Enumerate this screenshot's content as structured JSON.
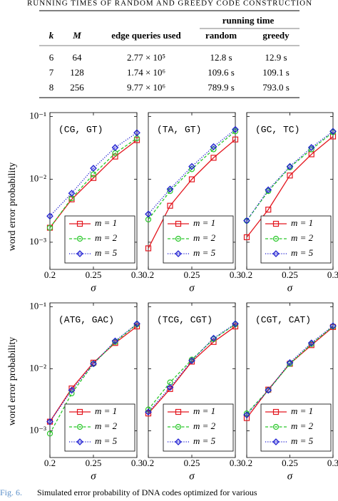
{
  "table": {
    "caption": "RUNNING TIMES OF RANDOM AND GREEDY CODE CONSTRUCTION",
    "group_header": "running time",
    "headers": [
      "k",
      "M",
      "edge queries used",
      "random",
      "greedy"
    ],
    "rows": [
      [
        "6",
        "64",
        "2.77 × 10⁵",
        "12.8 s",
        "12.9 s"
      ],
      [
        "7",
        "128",
        "1.74 × 10⁶",
        "109.6 s",
        "109.1 s"
      ],
      [
        "8",
        "256",
        "9.77 × 10⁶",
        "789.9 s",
        "793.0 s"
      ]
    ]
  },
  "chart_data": [
    {
      "type": "line",
      "annotation": "(CG, GT)",
      "ylabel": "word error probability",
      "xlabel": "σ",
      "log_y": true,
      "show_ytick_labels": true,
      "legend": "lower right",
      "x": [
        0.2,
        0.225,
        0.25,
        0.275,
        0.3
      ],
      "xlim": [
        0.2,
        0.3
      ],
      "xticks": [
        0.2,
        0.25,
        0.3
      ],
      "ylim": [
        0.00037,
        0.115
      ],
      "yticks": [
        {
          "value": 0.001,
          "label": "10⁻³"
        },
        {
          "value": 0.01,
          "label": "10⁻²"
        },
        {
          "value": 0.1,
          "label": "10⁻¹"
        }
      ],
      "series": [
        {
          "name": "m = 1",
          "color": "#e3161e",
          "values": [
            0.0017,
            0.0048,
            0.0105,
            0.023,
            0.042
          ]
        },
        {
          "name": "m = 2",
          "color": "#2bc82b",
          "values": [
            0.0017,
            0.005,
            0.012,
            0.026,
            0.045
          ]
        },
        {
          "name": "m = 5",
          "color": "#1a1ad0",
          "values": [
            0.0026,
            0.006,
            0.015,
            0.032,
            0.055
          ]
        }
      ]
    },
    {
      "type": "line",
      "annotation": "(TA, GT)",
      "xlabel": "σ",
      "log_y": true,
      "show_ytick_labels": false,
      "legend": "lower right",
      "x": [
        0.2,
        0.225,
        0.25,
        0.275,
        0.3
      ],
      "xlim": [
        0.2,
        0.3
      ],
      "xticks": [
        0.2,
        0.25,
        0.3
      ],
      "ylim": [
        0.00037,
        0.115
      ],
      "yticks": [
        {
          "value": 0.001,
          "label": "10⁻³"
        },
        {
          "value": 0.01,
          "label": "10⁻²"
        },
        {
          "value": 0.1,
          "label": "10⁻¹"
        }
      ],
      "series": [
        {
          "name": "m = 1",
          "color": "#e3161e",
          "values": [
            0.0008,
            0.0038,
            0.01,
            0.022,
            0.043
          ]
        },
        {
          "name": "m = 2",
          "color": "#2bc82b",
          "values": [
            0.0023,
            0.0065,
            0.0145,
            0.03,
            0.058
          ]
        },
        {
          "name": "m = 5",
          "color": "#1a1ad0",
          "values": [
            0.0028,
            0.007,
            0.016,
            0.033,
            0.062
          ]
        }
      ]
    },
    {
      "type": "line",
      "annotation": "(GC, TC)",
      "xlabel": "σ",
      "log_y": true,
      "show_ytick_labels": false,
      "legend": "lower right",
      "x": [
        0.2,
        0.225,
        0.25,
        0.275,
        0.3
      ],
      "xlim": [
        0.2,
        0.3
      ],
      "xticks": [
        0.2,
        0.25,
        0.3
      ],
      "ylim": [
        0.00037,
        0.115
      ],
      "yticks": [
        {
          "value": 0.001,
          "label": "10⁻³"
        },
        {
          "value": 0.01,
          "label": "10⁻²"
        },
        {
          "value": 0.1,
          "label": "10⁻¹"
        }
      ],
      "series": [
        {
          "name": "m = 1",
          "color": "#e3161e",
          "values": [
            0.0012,
            0.0033,
            0.0115,
            0.025,
            0.048
          ]
        },
        {
          "name": "m = 2",
          "color": "#2bc82b",
          "values": [
            0.0022,
            0.0065,
            0.0155,
            0.03,
            0.056
          ]
        },
        {
          "name": "m = 5",
          "color": "#1a1ad0",
          "values": [
            0.0022,
            0.0068,
            0.016,
            0.032,
            0.058
          ]
        }
      ]
    },
    {
      "type": "line",
      "annotation": "(ATG, GAC)",
      "ylabel": "word error probability",
      "xlabel": "σ",
      "log_y": true,
      "show_ytick_labels": true,
      "legend": "lower right",
      "x": [
        0.2,
        0.225,
        0.25,
        0.275,
        0.3
      ],
      "xlim": [
        0.2,
        0.3
      ],
      "xticks": [
        0.2,
        0.25,
        0.3
      ],
      "ylim": [
        0.00037,
        0.115
      ],
      "yticks": [
        {
          "value": 0.001,
          "label": "10⁻³"
        },
        {
          "value": 0.01,
          "label": "10⁻²"
        },
        {
          "value": 0.1,
          "label": "10⁻¹"
        }
      ],
      "series": [
        {
          "name": "m = 1",
          "color": "#e3161e",
          "values": [
            0.0014,
            0.0048,
            0.0125,
            0.026,
            0.048
          ]
        },
        {
          "name": "m = 2",
          "color": "#2bc82b",
          "values": [
            0.0009,
            0.004,
            0.012,
            0.027,
            0.052
          ]
        },
        {
          "name": "m = 5",
          "color": "#1a1ad0",
          "values": [
            0.0014,
            0.0045,
            0.012,
            0.028,
            0.053
          ]
        }
      ]
    },
    {
      "type": "line",
      "annotation": "(TCG, CGT)",
      "xlabel": "σ",
      "log_y": true,
      "show_ytick_labels": false,
      "legend": "lower right",
      "x": [
        0.2,
        0.225,
        0.25,
        0.275,
        0.3
      ],
      "xlim": [
        0.2,
        0.3
      ],
      "xticks": [
        0.2,
        0.25,
        0.3
      ],
      "ylim": [
        0.00037,
        0.115
      ],
      "yticks": [
        {
          "value": 0.001,
          "label": "10⁻³"
        },
        {
          "value": 0.01,
          "label": "10⁻²"
        },
        {
          "value": 0.1,
          "label": "10⁻¹"
        }
      ],
      "series": [
        {
          "name": "m = 1",
          "color": "#e3161e",
          "values": [
            0.0019,
            0.0047,
            0.013,
            0.027,
            0.048
          ]
        },
        {
          "name": "m = 2",
          "color": "#2bc82b",
          "values": [
            0.0022,
            0.006,
            0.014,
            0.03,
            0.052
          ]
        },
        {
          "name": "m = 5",
          "color": "#1a1ad0",
          "values": [
            0.002,
            0.005,
            0.0135,
            0.031,
            0.053
          ]
        }
      ]
    },
    {
      "type": "line",
      "annotation": "(CGT, CAT)",
      "xlabel": "σ",
      "log_y": true,
      "show_ytick_labels": false,
      "legend": "lower right",
      "x": [
        0.2,
        0.225,
        0.25,
        0.275,
        0.3
      ],
      "xlim": [
        0.2,
        0.3
      ],
      "xticks": [
        0.2,
        0.25,
        0.3
      ],
      "ylim": [
        0.00037,
        0.115
      ],
      "yticks": [
        {
          "value": 0.001,
          "label": "10⁻³"
        },
        {
          "value": 0.01,
          "label": "10⁻²"
        },
        {
          "value": 0.1,
          "label": "10⁻¹"
        }
      ],
      "series": [
        {
          "name": "m = 1",
          "color": "#e3161e",
          "values": [
            0.0016,
            0.0046,
            0.012,
            0.024,
            0.047
          ]
        },
        {
          "name": "m = 2",
          "color": "#2bc82b",
          "values": [
            0.0019,
            0.0045,
            0.012,
            0.025,
            0.048
          ]
        },
        {
          "name": "m = 5",
          "color": "#1a1ad0",
          "values": [
            0.0018,
            0.0045,
            0.0125,
            0.026,
            0.049
          ]
        }
      ]
    }
  ],
  "figure_caption": {
    "label": "Fig. 6.",
    "text": "Simulated error probability of DNA codes optimized for various"
  }
}
